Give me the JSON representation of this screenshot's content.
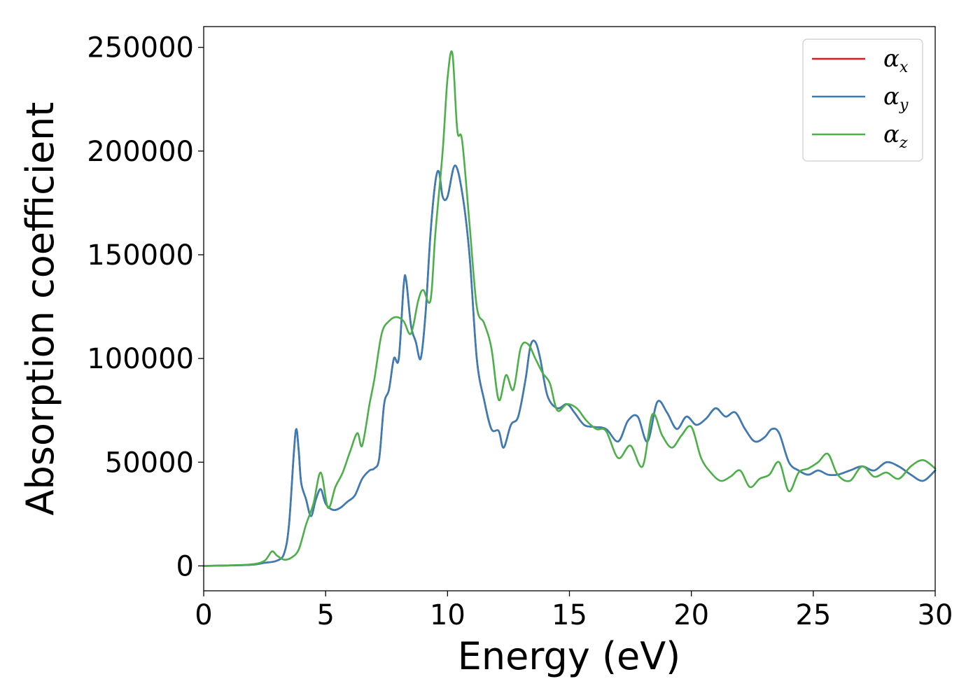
{
  "chart_data": {
    "type": "line",
    "xlabel": "Energy (eV)",
    "ylabel": "Absorption coefficient",
    "xlim": [
      0,
      30
    ],
    "ylim": [
      -12000,
      260000
    ],
    "x_ticks": [
      0,
      5,
      10,
      15,
      20,
      25,
      30
    ],
    "y_ticks": [
      0,
      50000,
      100000,
      150000,
      200000,
      250000
    ],
    "grid": false,
    "legend_position": "top-right",
    "series": [
      {
        "name": "α_x",
        "symbol": "α",
        "subscript": "x",
        "color": "#e41a1c",
        "x": [
          0,
          1,
          2,
          2.5,
          3,
          3.3,
          3.5,
          3.7,
          3.8,
          3.9,
          4.0,
          4.2,
          4.4,
          4.6,
          4.8,
          5.0,
          5.3,
          5.6,
          5.9,
          6.2,
          6.5,
          6.8,
          7.0,
          7.2,
          7.4,
          7.6,
          7.8,
          8.0,
          8.2,
          8.3,
          8.5,
          8.7,
          8.9,
          9.1,
          9.3,
          9.5,
          9.65,
          9.8,
          10.0,
          10.3,
          10.6,
          10.9,
          11.2,
          11.5,
          11.8,
          12.1,
          12.3,
          12.6,
          12.9,
          13.2,
          13.4,
          13.6,
          13.8,
          14.1,
          14.5,
          14.9,
          15.2,
          15.6,
          16.0,
          16.5,
          17.0,
          17.4,
          17.8,
          18.2,
          18.6,
          19.0,
          19.4,
          19.8,
          20.2,
          20.6,
          21.0,
          21.4,
          21.8,
          22.2,
          22.6,
          23.0,
          23.3,
          23.6,
          24.0,
          24.4,
          24.8,
          25.2,
          25.6,
          26.0,
          26.5,
          27.0,
          27.5,
          28.0,
          28.5,
          29.0,
          29.5,
          30.0
        ],
        "y": [
          0,
          200,
          600,
          1500,
          2500,
          6000,
          20000,
          55000,
          66000,
          55000,
          40000,
          32000,
          24000,
          32000,
          37000,
          30000,
          27000,
          28000,
          31000,
          34000,
          42000,
          46000,
          47000,
          52000,
          78000,
          85000,
          100000,
          100000,
          135000,
          138000,
          116000,
          108000,
          100000,
          122000,
          160000,
          185000,
          190000,
          178000,
          178000,
          193000,
          180000,
          150000,
          100000,
          80000,
          66000,
          65000,
          57000,
          68000,
          72000,
          90000,
          106000,
          108000,
          100000,
          82000,
          76000,
          78000,
          74000,
          68000,
          67000,
          66000,
          60000,
          70000,
          72000,
          60000,
          79000,
          74000,
          66000,
          72000,
          68000,
          71000,
          76000,
          72000,
          74000,
          66000,
          60000,
          62000,
          66000,
          64000,
          50000,
          46000,
          44000,
          46000,
          44000,
          44000,
          46000,
          48000,
          46000,
          50000,
          48000,
          44000,
          41000,
          46000
        ]
      },
      {
        "name": "α_y",
        "symbol": "α",
        "subscript": "y",
        "color": "#377eb8",
        "x": [
          0,
          1,
          2,
          2.5,
          3,
          3.3,
          3.5,
          3.7,
          3.8,
          3.9,
          4.0,
          4.2,
          4.4,
          4.6,
          4.8,
          5.0,
          5.3,
          5.6,
          5.9,
          6.2,
          6.5,
          6.8,
          7.0,
          7.2,
          7.4,
          7.6,
          7.8,
          8.0,
          8.2,
          8.3,
          8.5,
          8.7,
          8.9,
          9.1,
          9.3,
          9.5,
          9.65,
          9.8,
          10.0,
          10.3,
          10.6,
          10.9,
          11.2,
          11.5,
          11.8,
          12.1,
          12.3,
          12.6,
          12.9,
          13.2,
          13.4,
          13.6,
          13.8,
          14.1,
          14.5,
          14.9,
          15.2,
          15.6,
          16.0,
          16.5,
          17.0,
          17.4,
          17.8,
          18.2,
          18.6,
          19.0,
          19.4,
          19.8,
          20.2,
          20.6,
          21.0,
          21.4,
          21.8,
          22.2,
          22.6,
          23.0,
          23.3,
          23.6,
          24.0,
          24.4,
          24.8,
          25.2,
          25.6,
          26.0,
          26.5,
          27.0,
          27.5,
          28.0,
          28.5,
          29.0,
          29.5,
          30.0
        ],
        "y": [
          0,
          200,
          600,
          1500,
          2500,
          6000,
          20000,
          55000,
          66000,
          55000,
          40000,
          32000,
          24000,
          32000,
          37000,
          30000,
          27000,
          28000,
          31000,
          34000,
          42000,
          46000,
          47000,
          52000,
          78000,
          85000,
          100000,
          100000,
          135000,
          138000,
          116000,
          108000,
          100000,
          122000,
          160000,
          185000,
          190000,
          178000,
          178000,
          193000,
          180000,
          150000,
          100000,
          80000,
          66000,
          65000,
          57000,
          68000,
          72000,
          90000,
          106000,
          108000,
          100000,
          82000,
          76000,
          78000,
          74000,
          68000,
          67000,
          66000,
          60000,
          70000,
          72000,
          60000,
          79000,
          74000,
          66000,
          72000,
          68000,
          71000,
          76000,
          72000,
          74000,
          66000,
          60000,
          62000,
          66000,
          64000,
          50000,
          46000,
          44000,
          46000,
          44000,
          44000,
          46000,
          48000,
          46000,
          50000,
          48000,
          44000,
          41000,
          46000
        ]
      },
      {
        "name": "α_z",
        "symbol": "α",
        "subscript": "z",
        "color": "#4daf4a",
        "x": [
          0,
          1,
          2,
          2.5,
          2.8,
          3.0,
          3.3,
          3.6,
          3.9,
          4.2,
          4.5,
          4.8,
          5.1,
          5.4,
          5.7,
          6.0,
          6.3,
          6.5,
          6.8,
          7.0,
          7.3,
          7.6,
          7.9,
          8.2,
          8.5,
          8.8,
          9.0,
          9.3,
          9.5,
          9.8,
          10.0,
          10.2,
          10.4,
          10.6,
          10.9,
          11.2,
          11.5,
          11.8,
          12.1,
          12.4,
          12.7,
          13.0,
          13.3,
          13.6,
          13.9,
          14.2,
          14.5,
          14.9,
          15.3,
          15.7,
          16.1,
          16.5,
          17.0,
          17.5,
          18.0,
          18.4,
          18.8,
          19.2,
          19.6,
          20.0,
          20.4,
          20.8,
          21.2,
          21.6,
          22.0,
          22.4,
          22.8,
          23.2,
          23.6,
          24.0,
          24.4,
          24.8,
          25.2,
          25.6,
          26.0,
          26.5,
          27.0,
          27.5,
          28.0,
          28.5,
          29.0,
          29.5,
          30.0
        ],
        "y": [
          0,
          200,
          800,
          2500,
          7000,
          5000,
          3000,
          4000,
          8000,
          20000,
          30000,
          45000,
          28000,
          38000,
          45000,
          55000,
          64000,
          58000,
          78000,
          90000,
          112000,
          118000,
          120000,
          118000,
          112000,
          128000,
          133000,
          128000,
          160000,
          200000,
          235000,
          247000,
          210000,
          205000,
          165000,
          125000,
          117000,
          105000,
          80000,
          92000,
          85000,
          105000,
          107000,
          100000,
          93000,
          88000,
          75000,
          78000,
          76000,
          70000,
          66000,
          65000,
          52000,
          58000,
          48000,
          73000,
          63000,
          57000,
          63000,
          67000,
          52000,
          45000,
          41000,
          43000,
          46000,
          38000,
          42000,
          44000,
          50000,
          36000,
          45000,
          47000,
          50000,
          54000,
          44000,
          41000,
          48000,
          43000,
          45000,
          42000,
          48000,
          51000,
          47000
        ]
      }
    ]
  }
}
